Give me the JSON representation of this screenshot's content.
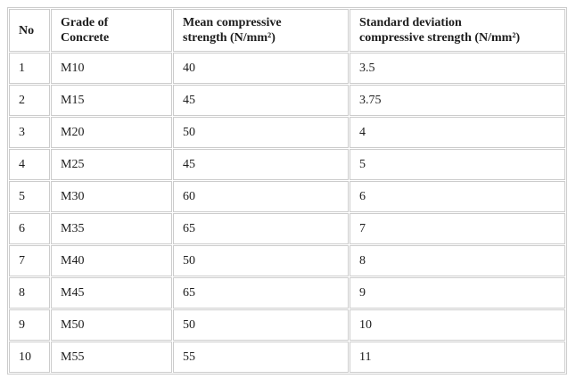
{
  "colors": {
    "text": "#1c1c1c",
    "border": "#cccccc",
    "page_background": "#ffffff",
    "table_background": "#ffffff"
  },
  "table": {
    "columns": [
      {
        "id": "no",
        "label": "No",
        "lines": [
          "No"
        ]
      },
      {
        "id": "grade",
        "label": "Grade of Concrete",
        "lines": [
          "Grade of",
          "Concrete"
        ]
      },
      {
        "id": "mean",
        "label": "Mean compressive strength (N/mm²)",
        "lines": [
          "Mean compressive",
          "strength (N/mm²)"
        ]
      },
      {
        "id": "std",
        "label": "Standard deviation compressive strength (N/mm²)",
        "lines": [
          "Standard deviation",
          "compressive strength (N/mm²)"
        ]
      }
    ],
    "rows": [
      [
        "1",
        "M10",
        "40",
        "3.5"
      ],
      [
        "2",
        "M15",
        "45",
        "3.75"
      ],
      [
        "3",
        "M20",
        "50",
        "4"
      ],
      [
        "4",
        "M25",
        "45",
        "5"
      ],
      [
        "5",
        "M30",
        "60",
        "6"
      ],
      [
        "6",
        "M35",
        "65",
        "7"
      ],
      [
        "7",
        "M40",
        "50",
        "8"
      ],
      [
        "8",
        "M45",
        "65",
        "9"
      ],
      [
        "9",
        "M50",
        "50",
        "10"
      ],
      [
        "10",
        "M55",
        "55",
        "11"
      ]
    ]
  },
  "chart_data": {
    "type": "table",
    "columns": [
      "No",
      "Grade of Concrete",
      "Mean compressive strength (N/mm²)",
      "Standard deviation compressive strength (N/mm²)"
    ],
    "rows": [
      [
        "1",
        "M10",
        "40",
        "3.5"
      ],
      [
        "2",
        "M15",
        "45",
        "3.75"
      ],
      [
        "3",
        "M20",
        "50",
        "4"
      ],
      [
        "4",
        "M25",
        "45",
        "5"
      ],
      [
        "5",
        "M30",
        "60",
        "6"
      ],
      [
        "6",
        "M35",
        "65",
        "7"
      ],
      [
        "7",
        "M40",
        "50",
        "8"
      ],
      [
        "8",
        "M45",
        "65",
        "9"
      ],
      [
        "9",
        "M50",
        "50",
        "10"
      ],
      [
        "10",
        "M55",
        "55",
        "11"
      ]
    ]
  }
}
